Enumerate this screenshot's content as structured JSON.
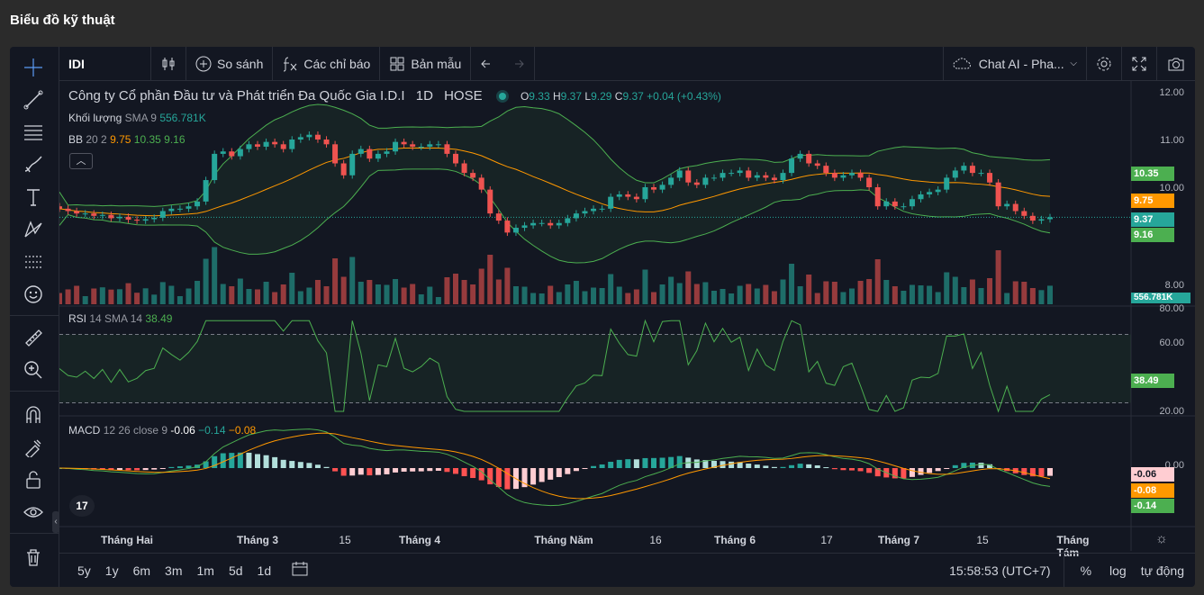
{
  "page": {
    "title": "Biểu đồ kỹ thuật"
  },
  "toolbar": {
    "symbol": "IDI",
    "compare": "So sánh",
    "indicators": "Các chỉ báo",
    "templates": "Bản mẫu",
    "chat_ai": "Chat AI - Pha..."
  },
  "legend": {
    "company": "Công ty Cổ phần Đầu tư và Phát triển Đa Quốc Gia I.D.I",
    "interval": "1D",
    "exchange": "HOSE",
    "o_label": "O",
    "o": "9.33",
    "h_label": "H",
    "h": "9.37",
    "l_label": "L",
    "l": "9.29",
    "c_label": "C",
    "c": "9.37",
    "change": "+0.04 (+0.43%)",
    "volume_label": "Khối lượng",
    "volume_params": "SMA 9",
    "volume_value": "556.781K",
    "bb_label": "BB",
    "bb_params": "20 2",
    "bb_mid": "9.75",
    "bb_up": "10.35",
    "bb_low": "9.16",
    "rsi_label": "RSI",
    "rsi_params": "14 SMA 14",
    "rsi_value": "38.49",
    "macd_label": "MACD",
    "macd_params": "12 26 close 9",
    "macd_v1": "-0.06",
    "macd_v2": "−0.14",
    "macd_v3": "−0.08"
  },
  "price_axis": {
    "ticks": [
      "12.00",
      "11.00",
      "10.00",
      "8.00"
    ]
  },
  "rsi_axis": {
    "ticks": [
      "80.00",
      "60.00",
      "20.00"
    ]
  },
  "macd_axis": {
    "ticks": [
      "0.00"
    ]
  },
  "tags": {
    "bb_up": "10.35",
    "bb_mid": "9.75",
    "price": "9.37",
    "bb_low": "9.16",
    "volume": "556.781K",
    "rsi": "38.49",
    "macd1": "-0.06",
    "macd2": "-0.08",
    "macd3": "-0.14"
  },
  "time_axis": {
    "labels": [
      "Tháng Hai",
      "Tháng 3",
      "15",
      "Tháng 4",
      "Tháng Năm",
      "16",
      "Tháng 6",
      "17",
      "Tháng 7",
      "15",
      "Tháng Tám"
    ]
  },
  "bottom": {
    "ranges": [
      "5y",
      "1y",
      "6m",
      "3m",
      "1m",
      "5d",
      "1d"
    ],
    "clock": "15:58:53 (UTC+7)",
    "pct": "%",
    "log": "log",
    "auto": "tự động"
  },
  "colors": {
    "up": "#26a69a",
    "down": "#ef5350",
    "bb": "#4caf50",
    "mid": "#ff9800",
    "bg": "#131722"
  },
  "chart_data": {
    "type": "candlestick",
    "closes": [
      9.55,
      9.5,
      9.45,
      9.45,
      9.4,
      9.42,
      9.35,
      9.38,
      9.32,
      9.3,
      9.33,
      9.36,
      9.5,
      9.55,
      9.55,
      9.6,
      9.7,
      10.15,
      10.7,
      10.75,
      10.65,
      10.8,
      10.9,
      10.85,
      10.95,
      10.9,
      10.8,
      11.0,
      11.05,
      11.1,
      11.0,
      10.9,
      10.5,
      10.25,
      10.7,
      10.8,
      10.6,
      10.7,
      10.75,
      10.95,
      10.9,
      10.85,
      10.85,
      10.9,
      10.9,
      10.7,
      10.5,
      10.3,
      10.2,
      9.95,
      9.45,
      9.3,
      9.05,
      9.15,
      9.2,
      9.25,
      9.25,
      9.2,
      9.25,
      9.35,
      9.45,
      9.5,
      9.55,
      9.55,
      9.8,
      9.85,
      9.8,
      9.75,
      10.0,
      9.95,
      10.05,
      10.2,
      10.35,
      10.1,
      10.05,
      10.2,
      10.2,
      10.3,
      10.3,
      10.35,
      10.2,
      10.25,
      10.2,
      10.15,
      10.3,
      10.6,
      10.7,
      10.5,
      10.45,
      10.3,
      10.2,
      10.25,
      10.3,
      10.2,
      10.0,
      9.6,
      9.7,
      9.6,
      9.6,
      9.75,
      9.85,
      9.9,
      9.95,
      10.2,
      10.35,
      10.45,
      10.3,
      10.3,
      10.1,
      9.6,
      9.65,
      9.5,
      9.4,
      9.3,
      9.33,
      9.37
    ]
  }
}
